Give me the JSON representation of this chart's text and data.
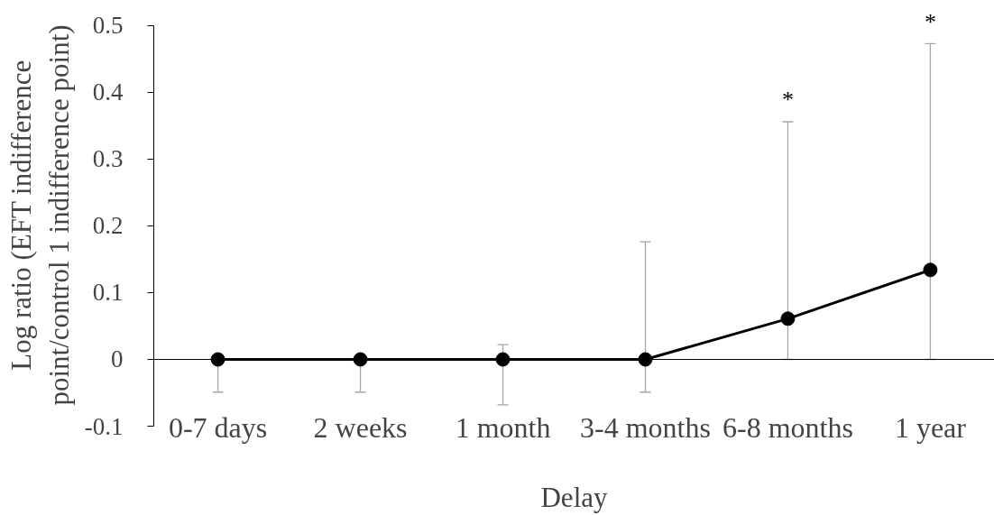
{
  "chart_data": {
    "type": "line",
    "xlabel": "Delay",
    "ylabel": "Log ratio (EFT indifference point/control 1 indifference point)",
    "categories": [
      "0-7 days",
      "2 weeks",
      "1 month",
      "3-4 months",
      "6-8 months",
      "1 year"
    ],
    "series": [
      {
        "color": "#000000",
        "values": [
          0,
          0,
          0,
          0,
          0.061,
          0.134
        ],
        "errors": [
          [
            -0.049,
            0
          ],
          [
            -0.049,
            0
          ],
          [
            -0.068,
            0.022
          ],
          [
            -0.049,
            0.176
          ],
          [
            0,
            0.356
          ],
          [
            0,
            0.473
          ]
        ]
      }
    ],
    "ylim": [
      -0.1,
      0.5
    ],
    "yticks": [
      -0.1,
      0,
      0.1,
      0.2,
      0.3,
      0.4,
      0.5
    ],
    "marker": "circle",
    "line_style": "solid",
    "annotations": [
      {
        "text": "*",
        "x": "6-8 months",
        "y": 0.356
      },
      {
        "text": "*",
        "x": "1 year",
        "y": 0.473
      }
    ]
  }
}
